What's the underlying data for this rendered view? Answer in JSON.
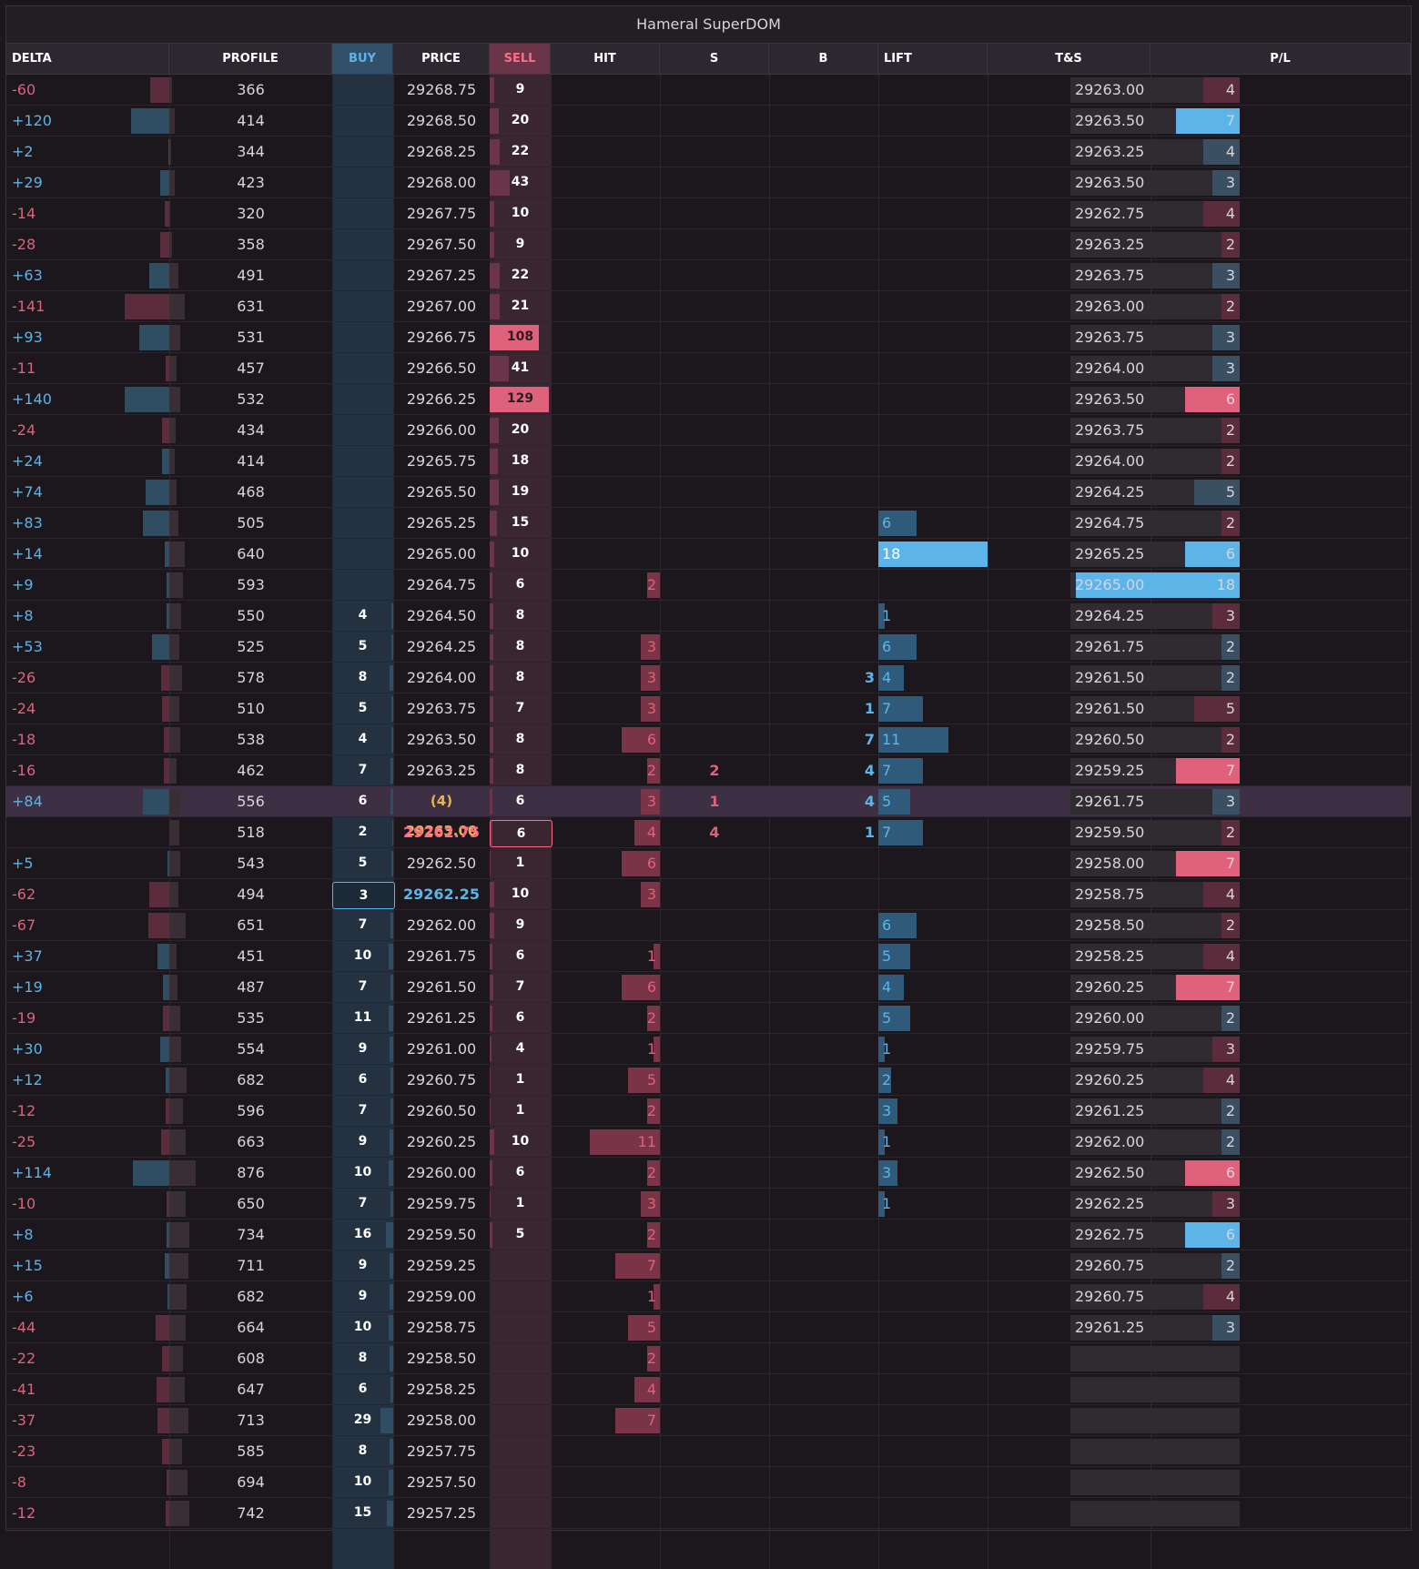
{
  "window": {
    "title": "Hameral SuperDOM"
  },
  "headers": [
    "DELTA",
    "PROFILE",
    "BUY",
    "PRICE",
    "SELL",
    "HIT",
    "S",
    "B",
    "LIFT",
    "T&S",
    "P/L"
  ],
  "colors": {
    "pos": "#5cb4e8",
    "neg": "#e0617b",
    "buy_bg": "#243140",
    "sell_bg": "#3a2630",
    "current_price": "#e6b450",
    "bid_highlight": "#5cb4e8",
    "ask_highlight": "#ff6b88"
  },
  "rows": [
    {
      "delta": "-60",
      "profile": "366",
      "buy": "",
      "price": "29268.75",
      "sell": "9",
      "hit": "",
      "s": "",
      "b": "",
      "lift": "",
      "ts_price": "29263.00",
      "ts_size": "4",
      "ts_side": "sell"
    },
    {
      "delta": "+120",
      "profile": "414",
      "buy": "",
      "price": "29268.50",
      "sell": "20",
      "hit": "",
      "s": "",
      "b": "",
      "lift": "",
      "ts_price": "29263.50",
      "ts_size": "7",
      "ts_side": "buy"
    },
    {
      "delta": "+2",
      "profile": "344",
      "buy": "",
      "price": "29268.25",
      "sell": "22",
      "hit": "",
      "s": "",
      "b": "",
      "lift": "",
      "ts_price": "29263.25",
      "ts_size": "4",
      "ts_side": "buy"
    },
    {
      "delta": "+29",
      "profile": "423",
      "buy": "",
      "price": "29268.00",
      "sell": "43",
      "hit": "",
      "s": "",
      "b": "",
      "lift": "",
      "ts_price": "29263.50",
      "ts_size": "3",
      "ts_side": "buy"
    },
    {
      "delta": "-14",
      "profile": "320",
      "buy": "",
      "price": "29267.75",
      "sell": "10",
      "hit": "",
      "s": "",
      "b": "",
      "lift": "",
      "ts_price": "29262.75",
      "ts_size": "4",
      "ts_side": "sell"
    },
    {
      "delta": "-28",
      "profile": "358",
      "buy": "",
      "price": "29267.50",
      "sell": "9",
      "hit": "",
      "s": "",
      "b": "",
      "lift": "",
      "ts_price": "29263.25",
      "ts_size": "2",
      "ts_side": "sell"
    },
    {
      "delta": "+63",
      "profile": "491",
      "buy": "",
      "price": "29267.25",
      "sell": "22",
      "hit": "",
      "s": "",
      "b": "",
      "lift": "",
      "ts_price": "29263.75",
      "ts_size": "3",
      "ts_side": "buy"
    },
    {
      "delta": "-141",
      "profile": "631",
      "buy": "",
      "price": "29267.00",
      "sell": "21",
      "hit": "",
      "s": "",
      "b": "",
      "lift": "",
      "ts_price": "29263.00",
      "ts_size": "2",
      "ts_side": "sell"
    },
    {
      "delta": "+93",
      "profile": "531",
      "buy": "",
      "price": "29266.75",
      "sell": "108",
      "hit": "",
      "s": "",
      "b": "",
      "lift": "",
      "ts_price": "29263.75",
      "ts_size": "3",
      "ts_side": "buy"
    },
    {
      "delta": "-11",
      "profile": "457",
      "buy": "",
      "price": "29266.50",
      "sell": "41",
      "hit": "",
      "s": "",
      "b": "",
      "lift": "",
      "ts_price": "29264.00",
      "ts_size": "3",
      "ts_side": "buy"
    },
    {
      "delta": "+140",
      "profile": "532",
      "buy": "",
      "price": "29266.25",
      "sell": "129",
      "hit": "",
      "s": "",
      "b": "",
      "lift": "",
      "ts_price": "29263.50",
      "ts_size": "6",
      "ts_side": "sell"
    },
    {
      "delta": "-24",
      "profile": "434",
      "buy": "",
      "price": "29266.00",
      "sell": "20",
      "hit": "",
      "s": "",
      "b": "",
      "lift": "",
      "ts_price": "29263.75",
      "ts_size": "2",
      "ts_side": "sell"
    },
    {
      "delta": "+24",
      "profile": "414",
      "buy": "",
      "price": "29265.75",
      "sell": "18",
      "hit": "",
      "s": "",
      "b": "",
      "lift": "",
      "ts_price": "29264.00",
      "ts_size": "2",
      "ts_side": "sell"
    },
    {
      "delta": "+74",
      "profile": "468",
      "buy": "",
      "price": "29265.50",
      "sell": "19",
      "hit": "",
      "s": "",
      "b": "",
      "lift": "",
      "ts_price": "29264.25",
      "ts_size": "5",
      "ts_side": "buy"
    },
    {
      "delta": "+83",
      "profile": "505",
      "buy": "",
      "price": "29265.25",
      "sell": "15",
      "hit": "",
      "s": "",
      "b": "",
      "lift": "6",
      "ts_price": "29264.75",
      "ts_size": "2",
      "ts_side": "sell"
    },
    {
      "delta": "+14",
      "profile": "640",
      "buy": "",
      "price": "29265.00",
      "sell": "10",
      "hit": "",
      "s": "",
      "b": "",
      "lift": "18",
      "ts_price": "29265.25",
      "ts_size": "6",
      "ts_side": "buy"
    },
    {
      "delta": "+9",
      "profile": "593",
      "buy": "",
      "price": "29264.75",
      "sell": "6",
      "hit": "2",
      "s": "",
      "b": "",
      "lift": "",
      "ts_price": "29265.00",
      "ts_size": "18",
      "ts_side": "buy"
    },
    {
      "delta": "+8",
      "profile": "550",
      "buy": "4",
      "price": "29264.50",
      "sell": "8",
      "hit": "",
      "s": "",
      "b": "",
      "lift": "1",
      "ts_price": "29264.25",
      "ts_size": "3",
      "ts_side": "sell"
    },
    {
      "delta": "+53",
      "profile": "525",
      "buy": "5",
      "price": "29264.25",
      "sell": "8",
      "hit": "3",
      "s": "",
      "b": "",
      "lift": "6",
      "ts_price": "29261.75",
      "ts_size": "2",
      "ts_side": "buy"
    },
    {
      "delta": "-26",
      "profile": "578",
      "buy": "8",
      "price": "29264.00",
      "sell": "8",
      "hit": "3",
      "s": "",
      "b": "3",
      "lift": "4",
      "ts_price": "29261.50",
      "ts_size": "2",
      "ts_side": "buy"
    },
    {
      "delta": "-24",
      "profile": "510",
      "buy": "5",
      "price": "29263.75",
      "sell": "7",
      "hit": "3",
      "s": "",
      "b": "1",
      "lift": "7",
      "ts_price": "29261.50",
      "ts_size": "5",
      "ts_side": "sell"
    },
    {
      "delta": "-18",
      "profile": "538",
      "buy": "4",
      "price": "29263.50",
      "sell": "8",
      "hit": "6",
      "s": "",
      "b": "7",
      "lift": "11",
      "ts_price": "29260.50",
      "ts_size": "2",
      "ts_side": "sell"
    },
    {
      "delta": "-16",
      "profile": "462",
      "buy": "7",
      "price": "29263.25",
      "sell": "8",
      "hit": "2",
      "s": "2",
      "b": "4",
      "lift": "7",
      "ts_price": "29259.25",
      "ts_size": "7",
      "ts_side": "sell"
    },
    {
      "delta": "+84",
      "profile": "556",
      "buy": "6",
      "price": "(4) 29263.00",
      "sell": "6",
      "hit": "3",
      "s": "1",
      "b": "4",
      "lift": "5",
      "ts_price": "29261.75",
      "ts_size": "3",
      "ts_side": "buy"
    },
    {
      "delta": "",
      "profile": "518",
      "buy": "2",
      "price": "29262.75",
      "sell": "6",
      "hit": "4",
      "s": "4",
      "b": "1",
      "lift": "7",
      "ts_price": "29259.50",
      "ts_size": "2",
      "ts_side": "sell"
    },
    {
      "delta": "+5",
      "profile": "543",
      "buy": "5",
      "price": "29262.50",
      "sell": "1",
      "hit": "6",
      "s": "",
      "b": "",
      "lift": "",
      "ts_price": "29258.00",
      "ts_size": "7",
      "ts_side": "sell"
    },
    {
      "delta": "-62",
      "profile": "494",
      "buy": "3",
      "price": "29262.25",
      "sell": "10",
      "hit": "3",
      "s": "",
      "b": "",
      "lift": "",
      "ts_price": "29258.75",
      "ts_size": "4",
      "ts_side": "sell"
    },
    {
      "delta": "-67",
      "profile": "651",
      "buy": "7",
      "price": "29262.00",
      "sell": "9",
      "hit": "",
      "s": "",
      "b": "",
      "lift": "6",
      "ts_price": "29258.50",
      "ts_size": "2",
      "ts_side": "sell"
    },
    {
      "delta": "+37",
      "profile": "451",
      "buy": "10",
      "price": "29261.75",
      "sell": "6",
      "hit": "1",
      "s": "",
      "b": "",
      "lift": "5",
      "ts_price": "29258.25",
      "ts_size": "4",
      "ts_side": "sell"
    },
    {
      "delta": "+19",
      "profile": "487",
      "buy": "7",
      "price": "29261.50",
      "sell": "7",
      "hit": "6",
      "s": "",
      "b": "",
      "lift": "4",
      "ts_price": "29260.25",
      "ts_size": "7",
      "ts_side": "sell"
    },
    {
      "delta": "-19",
      "profile": "535",
      "buy": "11",
      "price": "29261.25",
      "sell": "6",
      "hit": "2",
      "s": "",
      "b": "",
      "lift": "5",
      "ts_price": "29260.00",
      "ts_size": "2",
      "ts_side": "buy"
    },
    {
      "delta": "+30",
      "profile": "554",
      "buy": "9",
      "price": "29261.00",
      "sell": "4",
      "hit": "1",
      "s": "",
      "b": "",
      "lift": "1",
      "ts_price": "29259.75",
      "ts_size": "3",
      "ts_side": "sell"
    },
    {
      "delta": "+12",
      "profile": "682",
      "buy": "6",
      "price": "29260.75",
      "sell": "1",
      "hit": "5",
      "s": "",
      "b": "",
      "lift": "2",
      "ts_price": "29260.25",
      "ts_size": "4",
      "ts_side": "sell"
    },
    {
      "delta": "-12",
      "profile": "596",
      "buy": "7",
      "price": "29260.50",
      "sell": "1",
      "hit": "2",
      "s": "",
      "b": "",
      "lift": "3",
      "ts_price": "29261.25",
      "ts_size": "2",
      "ts_side": "buy"
    },
    {
      "delta": "-25",
      "profile": "663",
      "buy": "9",
      "price": "29260.25",
      "sell": "10",
      "hit": "11",
      "s": "",
      "b": "",
      "lift": "1",
      "ts_price": "29262.00",
      "ts_size": "2",
      "ts_side": "buy"
    },
    {
      "delta": "+114",
      "profile": "876",
      "buy": "10",
      "price": "29260.00",
      "sell": "6",
      "hit": "2",
      "s": "",
      "b": "",
      "lift": "3",
      "ts_price": "29262.50",
      "ts_size": "6",
      "ts_side": "sell"
    },
    {
      "delta": "-10",
      "profile": "650",
      "buy": "7",
      "price": "29259.75",
      "sell": "1",
      "hit": "3",
      "s": "",
      "b": "",
      "lift": "1",
      "ts_price": "29262.25",
      "ts_size": "3",
      "ts_side": "sell"
    },
    {
      "delta": "+8",
      "profile": "734",
      "buy": "16",
      "price": "29259.50",
      "sell": "5",
      "hit": "2",
      "s": "",
      "b": "",
      "lift": "",
      "ts_price": "29262.75",
      "ts_size": "6",
      "ts_side": "buy"
    },
    {
      "delta": "+15",
      "profile": "711",
      "buy": "9",
      "price": "29259.25",
      "sell": "",
      "hit": "7",
      "s": "",
      "b": "",
      "lift": "",
      "ts_price": "29260.75",
      "ts_size": "2",
      "ts_side": "buy"
    },
    {
      "delta": "+6",
      "profile": "682",
      "buy": "9",
      "price": "29259.00",
      "sell": "",
      "hit": "1",
      "s": "",
      "b": "",
      "lift": "",
      "ts_price": "29260.75",
      "ts_size": "4",
      "ts_side": "sell"
    },
    {
      "delta": "-44",
      "profile": "664",
      "buy": "10",
      "price": "29258.75",
      "sell": "",
      "hit": "5",
      "s": "",
      "b": "",
      "lift": "",
      "ts_price": "29261.25",
      "ts_size": "3",
      "ts_side": "buy"
    },
    {
      "delta": "-22",
      "profile": "608",
      "buy": "8",
      "price": "29258.50",
      "sell": "",
      "hit": "2",
      "s": "",
      "b": "",
      "lift": "",
      "ts_price": "",
      "ts_size": "",
      "ts_side": ""
    },
    {
      "delta": "-41",
      "profile": "647",
      "buy": "6",
      "price": "29258.25",
      "sell": "",
      "hit": "4",
      "s": "",
      "b": "",
      "lift": "",
      "ts_price": "",
      "ts_size": "",
      "ts_side": ""
    },
    {
      "delta": "-37",
      "profile": "713",
      "buy": "29",
      "price": "29258.00",
      "sell": "",
      "hit": "7",
      "s": "",
      "b": "",
      "lift": "",
      "ts_price": "",
      "ts_size": "",
      "ts_side": ""
    },
    {
      "delta": "-23",
      "profile": "585",
      "buy": "8",
      "price": "29257.75",
      "sell": "",
      "hit": "",
      "s": "",
      "b": "",
      "lift": "",
      "ts_price": "",
      "ts_size": "",
      "ts_side": ""
    },
    {
      "delta": "-8",
      "profile": "694",
      "buy": "10",
      "price": "29257.50",
      "sell": "",
      "hit": "",
      "s": "",
      "b": "",
      "lift": "",
      "ts_price": "",
      "ts_size": "",
      "ts_side": ""
    },
    {
      "delta": "-12",
      "profile": "742",
      "buy": "15",
      "price": "29257.25",
      "sell": "",
      "hit": "",
      "s": "",
      "b": "",
      "lift": "",
      "ts_price": "",
      "ts_size": "",
      "ts_side": ""
    }
  ]
}
